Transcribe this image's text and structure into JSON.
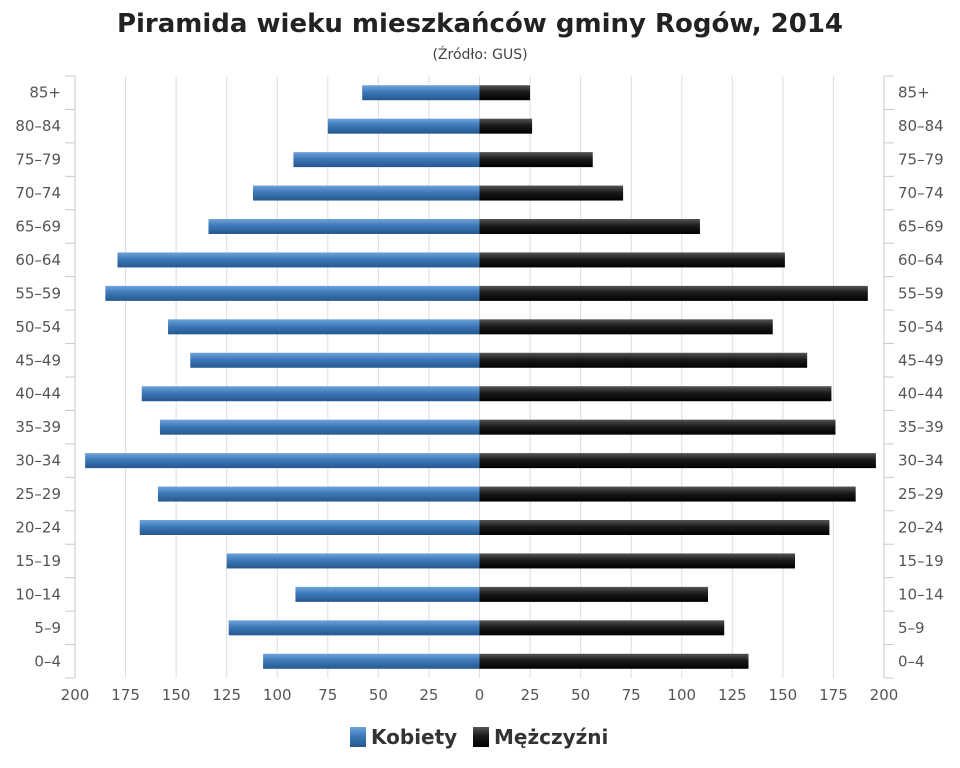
{
  "chart_data": {
    "type": "bar",
    "orientation": "horizontal-pyramid",
    "title": "Piramida wieku mieszkańców gminy Rogów, 2014",
    "subtitle": "(Źródło: GUS)",
    "categories": [
      "85+",
      "80–84",
      "75–79",
      "70–74",
      "65–69",
      "60–64",
      "55–59",
      "50–54",
      "45–49",
      "40–44",
      "35–39",
      "30–34",
      "25–29",
      "20–24",
      "15–19",
      "10–14",
      "5–9",
      "0–4"
    ],
    "series": [
      {
        "name": "Kobiety",
        "color": "#3d78b8",
        "values": [
          58,
          75,
          92,
          112,
          134,
          179,
          185,
          154,
          143,
          167,
          158,
          195,
          159,
          168,
          125,
          91,
          124,
          107
        ]
      },
      {
        "name": "Mężczyźni",
        "color": "#1a1a1a",
        "values": [
          25,
          26,
          56,
          71,
          109,
          151,
          192,
          145,
          162,
          174,
          176,
          196,
          186,
          173,
          156,
          113,
          121,
          133
        ]
      }
    ],
    "x_ticks": [
      "200",
      "175",
      "150",
      "125",
      "100",
      "75",
      "50",
      "25",
      "0",
      "25",
      "50",
      "75",
      "100",
      "125",
      "150",
      "175",
      "200"
    ],
    "xlim": [
      -200,
      200
    ],
    "grid": true,
    "legend_position": "bottom-center"
  }
}
